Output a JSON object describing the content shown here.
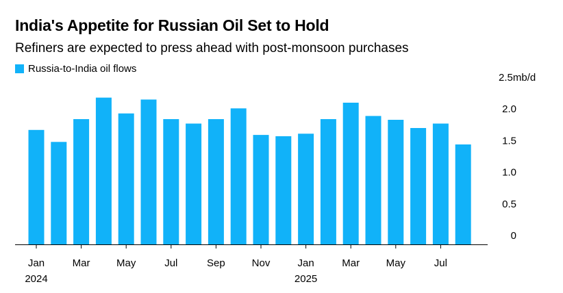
{
  "title": "India's Appetite for Russian Oil Set to Hold",
  "subtitle": "Refiners are expected to press ahead with post-monsoon purchases",
  "colors": {
    "bar": "#11b2f9",
    "axis": "#000000"
  },
  "chart_data": {
    "type": "bar",
    "series": [
      {
        "name": "Russia-to-India oil flows",
        "values": [
          1.81,
          1.62,
          1.98,
          2.32,
          2.07,
          2.29,
          1.98,
          1.91,
          1.98,
          2.15,
          1.73,
          1.71,
          1.75,
          1.98,
          2.24,
          2.03,
          1.97,
          1.84,
          1.91,
          1.58
        ]
      }
    ],
    "categories": [
      "Jan 2024",
      "Feb 2024",
      "Mar 2024",
      "Apr 2024",
      "May 2024",
      "Jun 2024",
      "Jul 2024",
      "Aug 2024",
      "Sep 2024",
      "Oct 2024",
      "Nov 2024",
      "Dec 2024",
      "Jan 2025",
      "Feb 2025",
      "Mar 2025",
      "Apr 2025",
      "May 2025",
      "Jun 2025",
      "Jul 2025",
      "Aug 2025"
    ],
    "x_tick_labels": [
      {
        "index": 0,
        "label": "Jan",
        "sublabel": "2024"
      },
      {
        "index": 2,
        "label": "Mar"
      },
      {
        "index": 4,
        "label": "May"
      },
      {
        "index": 6,
        "label": "Jul"
      },
      {
        "index": 8,
        "label": "Sep"
      },
      {
        "index": 10,
        "label": "Nov"
      },
      {
        "index": 12,
        "label": "Jan",
        "sublabel": "2025"
      },
      {
        "index": 14,
        "label": "Mar"
      },
      {
        "index": 16,
        "label": "May"
      },
      {
        "index": 18,
        "label": "Jul"
      }
    ],
    "y_ticks": [
      {
        "value": 0,
        "label": "0"
      },
      {
        "value": 0.5,
        "label": "0.5"
      },
      {
        "value": 1.0,
        "label": "1.0"
      },
      {
        "value": 1.5,
        "label": "1.5"
      },
      {
        "value": 2.0,
        "label": "2.0"
      },
      {
        "value": 2.5,
        "label": "2.5mb/d"
      }
    ],
    "ylim": [
      0,
      2.5
    ],
    "y_axis_side": "right",
    "grid": false,
    "legend_position": "top-left"
  }
}
